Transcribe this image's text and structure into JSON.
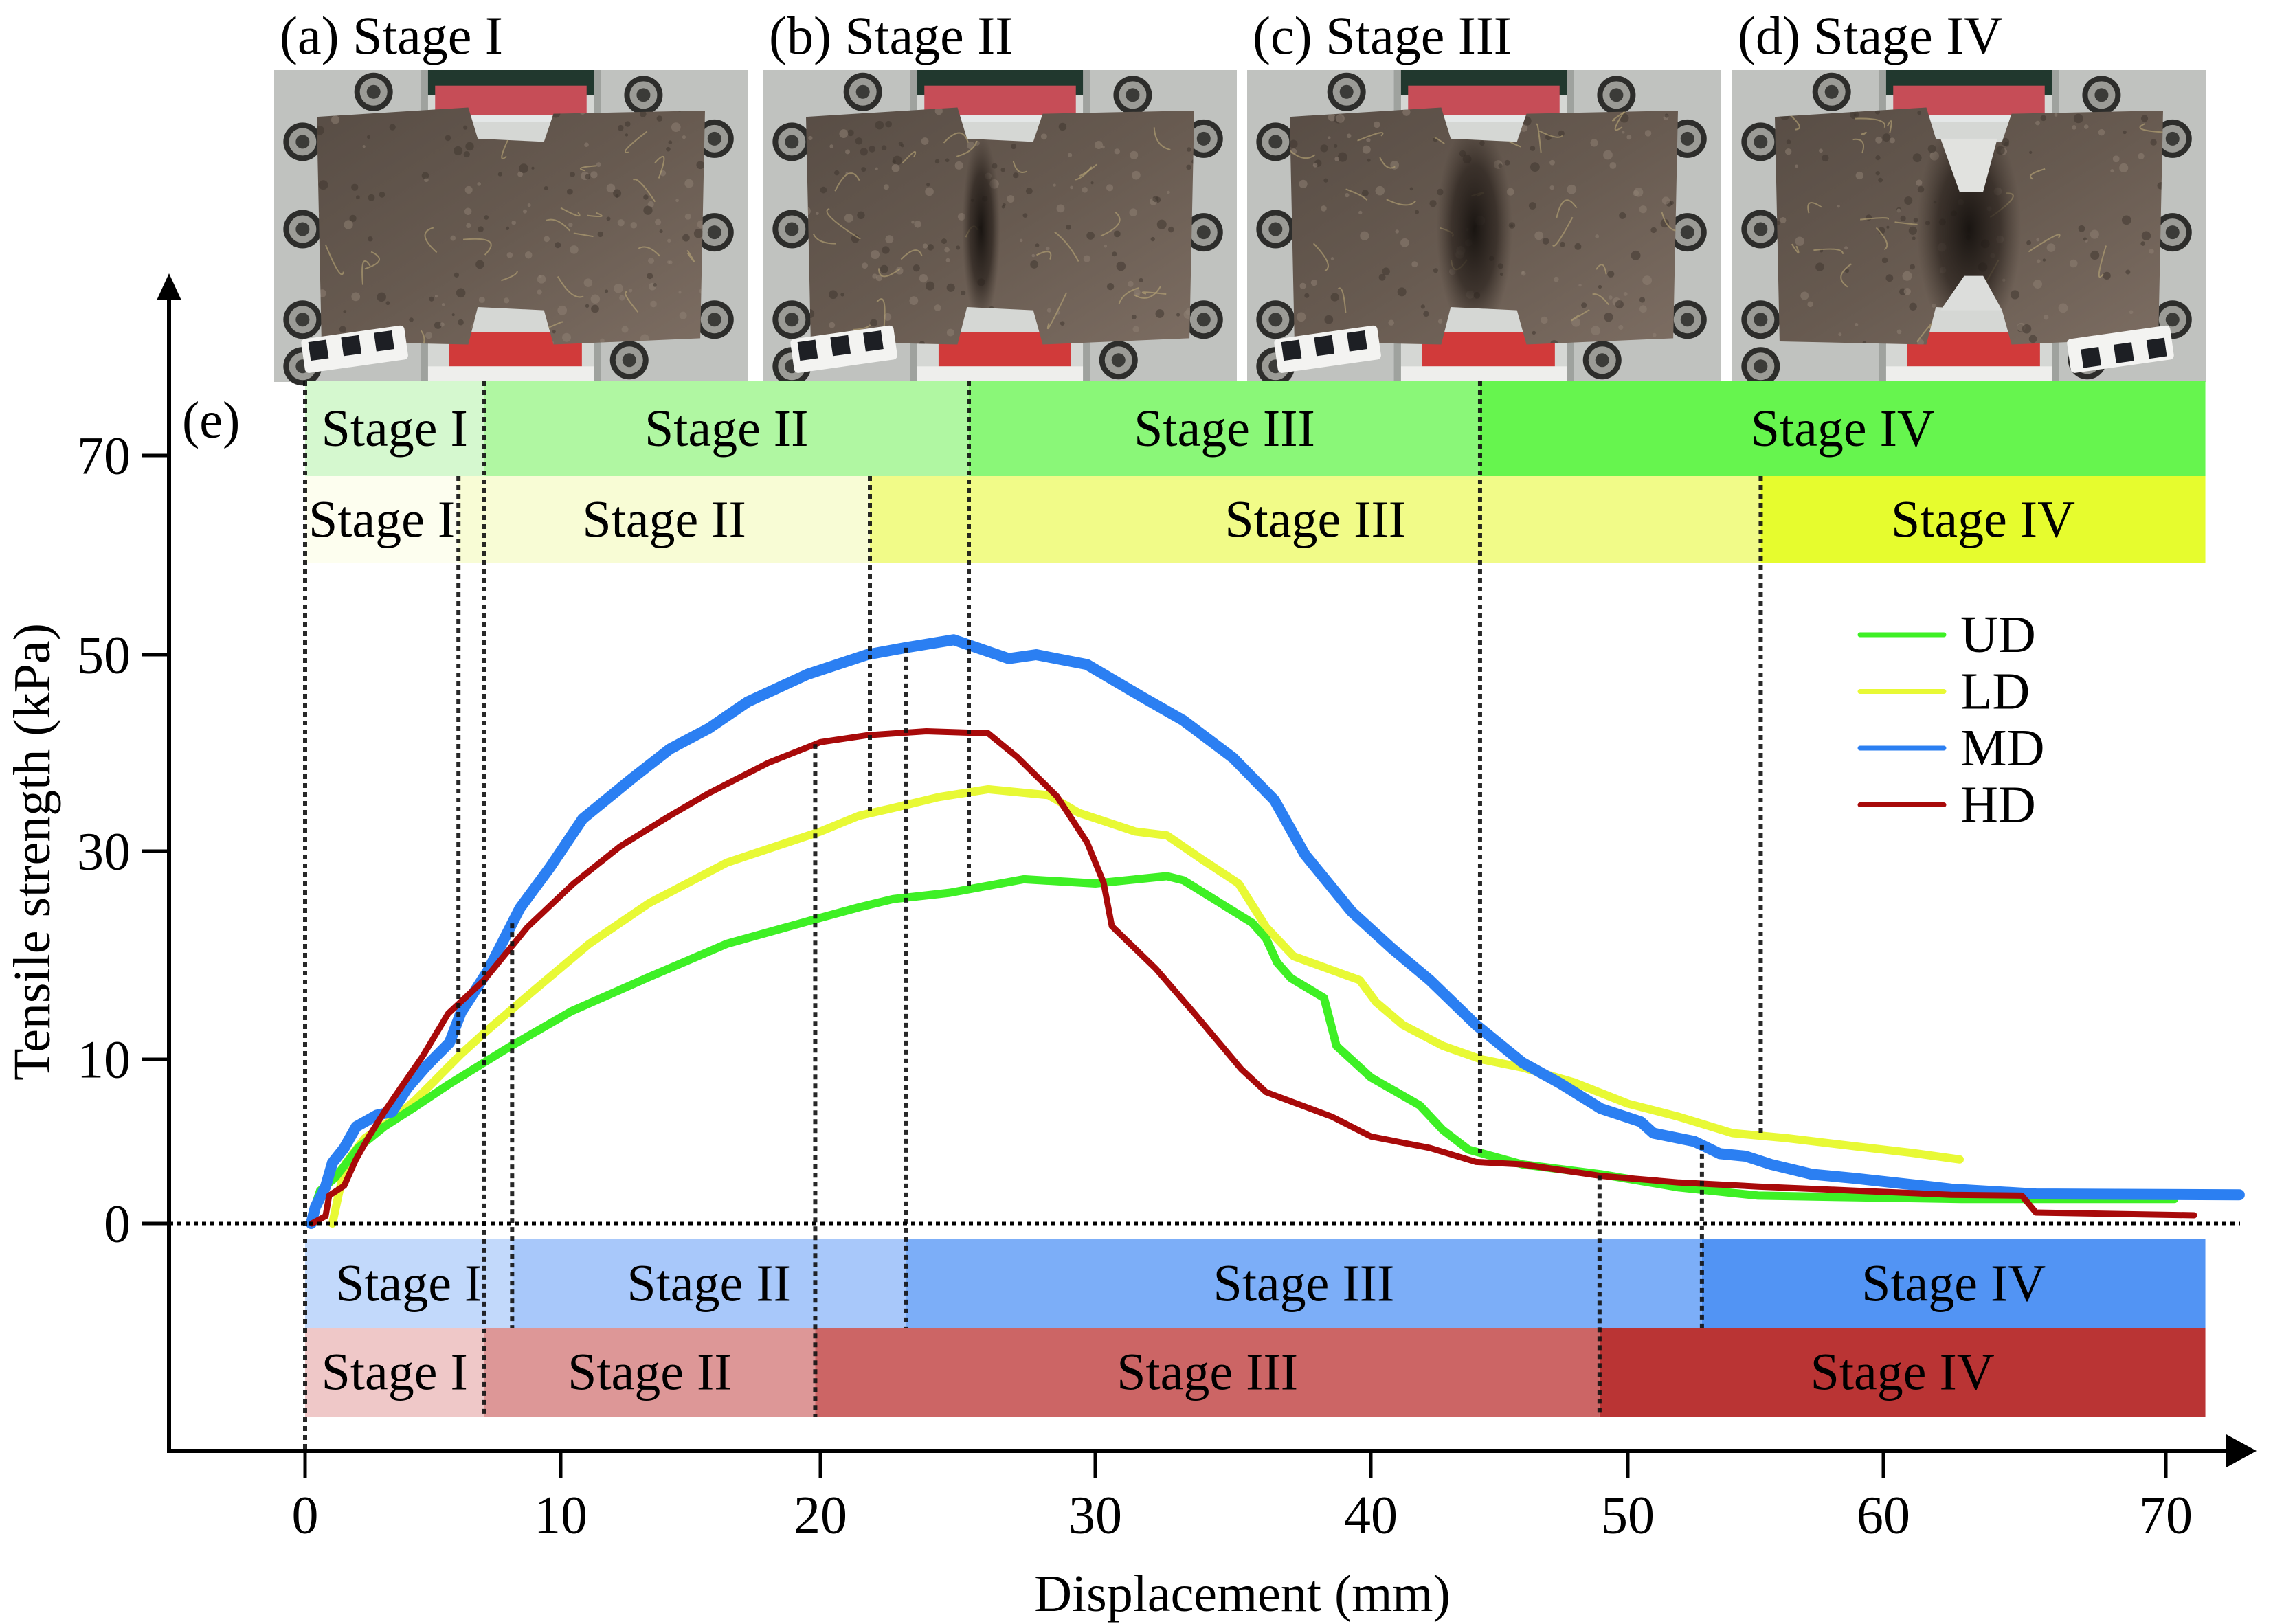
{
  "figure": {
    "panel_label": "(e)",
    "photos": [
      {
        "label": "(a) Stage I",
        "stage": "I"
      },
      {
        "label": "(b) Stage II",
        "stage": "II"
      },
      {
        "label": "(c) Stage III",
        "stage": "III"
      },
      {
        "label": "(d) Stage IV",
        "stage": "IV"
      }
    ]
  },
  "chart_data": {
    "type": "line",
    "title": "",
    "xlabel": "Displacement (mm)",
    "ylabel": "Tensile strength (kPa)",
    "x_ticks": [
      0,
      10,
      20,
      30,
      40,
      50,
      60,
      70
    ],
    "x_tick_labels": [
      "0",
      "10",
      "20",
      "30",
      "40",
      "50",
      "60",
      "70"
    ],
    "y_ticks": [
      70,
      50,
      30,
      10,
      0
    ],
    "y_tick_labels": [
      "70",
      "50",
      "30",
      "10",
      "0"
    ],
    "xlim": [
      -5.3,
      73.2
    ],
    "ylim": [
      -13.8,
      88
    ],
    "grid": false,
    "zero_reference_line": 0,
    "legend": {
      "position": "upper-right",
      "entries": [
        "UD",
        "LD",
        "MD",
        "HD"
      ]
    },
    "series": [
      {
        "name": "UD",
        "color": "#3ef025",
        "points": [
          [
            0.3,
            0
          ],
          [
            0.37,
            1.0
          ],
          [
            0.59,
            2.0
          ],
          [
            1.18,
            2.8
          ],
          [
            2.07,
            4.6
          ],
          [
            3.1,
            5.9
          ],
          [
            4.3,
            7.1
          ],
          [
            5.65,
            8.5
          ],
          [
            7.0,
            9.8
          ],
          [
            8.0,
            11.2
          ],
          [
            10.4,
            14.6
          ],
          [
            13.4,
            17.9
          ],
          [
            16.4,
            21.1
          ],
          [
            20.0,
            23.6
          ],
          [
            21.4,
            24.6
          ],
          [
            22.65,
            25.4
          ],
          [
            24.7,
            26.0
          ],
          [
            27.4,
            27.3
          ],
          [
            30.0,
            26.9
          ],
          [
            32.6,
            27.6
          ],
          [
            33.2,
            27.2
          ],
          [
            34.3,
            25.4
          ],
          [
            35.7,
            23.1
          ],
          [
            36.2,
            21.6
          ],
          [
            36.6,
            19.3
          ],
          [
            37.1,
            17.8
          ],
          [
            38.3,
            15.9
          ],
          [
            38.45,
            14.4
          ],
          [
            38.75,
            11.3
          ],
          [
            40.0,
            8.9
          ],
          [
            41.9,
            7.2
          ],
          [
            42.8,
            5.7
          ],
          [
            43.8,
            4.5
          ],
          [
            45.9,
            3.6
          ],
          [
            48.95,
            3.0
          ],
          [
            52.0,
            2.2
          ],
          [
            55.1,
            1.7
          ],
          [
            58.9,
            1.6
          ],
          [
            62.75,
            1.5
          ],
          [
            66.0,
            1.5
          ],
          [
            70.3,
            1.5
          ]
        ]
      },
      {
        "name": "LD",
        "color": "#e8f935",
        "points": [
          [
            1.07,
            0
          ],
          [
            1.3,
            1.7
          ],
          [
            1.6,
            3.7
          ],
          [
            2.34,
            5.2
          ],
          [
            3.3,
            6.2
          ],
          [
            4.3,
            7.5
          ],
          [
            5.2,
            8.9
          ],
          [
            6.1,
            10.5
          ],
          [
            7.0,
            12.5
          ],
          [
            8.85,
            16.4
          ],
          [
            11.1,
            21.1
          ],
          [
            13.4,
            25.0
          ],
          [
            16.4,
            28.9
          ],
          [
            20.0,
            32.0
          ],
          [
            21.4,
            33.6
          ],
          [
            22.65,
            34.4
          ],
          [
            24.3,
            35.5
          ],
          [
            26.1,
            36.3
          ],
          [
            28.3,
            35.7
          ],
          [
            29.4,
            33.9
          ],
          [
            31.45,
            32.0
          ],
          [
            32.6,
            31.6
          ],
          [
            33.85,
            29.25
          ],
          [
            35.2,
            26.9
          ],
          [
            36.2,
            22.7
          ],
          [
            37.2,
            19.9
          ],
          [
            39.6,
            17.6
          ],
          [
            40.2,
            15.5
          ],
          [
            41.25,
            13.3
          ],
          [
            42.8,
            11.3
          ],
          [
            44.3,
            10.0
          ],
          [
            45.9,
            9.5
          ],
          [
            47.9,
            8.6
          ],
          [
            50.0,
            7.3
          ],
          [
            52.0,
            6.5
          ],
          [
            54.1,
            5.5
          ],
          [
            56.2,
            5.2
          ],
          [
            58.9,
            4.7
          ],
          [
            61.0,
            4.3
          ],
          [
            62.7,
            3.9
          ]
        ]
      },
      {
        "name": "MD",
        "color": "#2b7ff2",
        "points": [
          [
            0.24,
            0
          ],
          [
            0.4,
            1.0
          ],
          [
            0.8,
            2.25
          ],
          [
            1.07,
            3.7
          ],
          [
            1.53,
            4.6
          ],
          [
            2.0,
            5.9
          ],
          [
            2.8,
            6.6
          ],
          [
            3.4,
            6.8
          ],
          [
            4.0,
            8.25
          ],
          [
            4.75,
            9.6
          ],
          [
            5.65,
            11.6
          ],
          [
            6.1,
            14.5
          ],
          [
            7.15,
            18.5
          ],
          [
            8.4,
            24.5
          ],
          [
            9.6,
            28.5
          ],
          [
            10.85,
            33.3
          ],
          [
            12.7,
            37.3
          ],
          [
            14.2,
            40.4
          ],
          [
            15.7,
            42.5
          ],
          [
            17.2,
            45.2
          ],
          [
            19.5,
            48.0
          ],
          [
            21.7,
            50.0
          ],
          [
            23.1,
            50.7
          ],
          [
            24.85,
            51.5
          ],
          [
            26.85,
            49.6
          ],
          [
            27.85,
            50.0
          ],
          [
            29.7,
            49.0
          ],
          [
            31.7,
            45.7
          ],
          [
            33.2,
            43.3
          ],
          [
            35.0,
            39.5
          ],
          [
            36.5,
            35.2
          ],
          [
            37.6,
            29.7
          ],
          [
            39.3,
            24.2
          ],
          [
            40.8,
            20.7
          ],
          [
            42.3,
            17.6
          ],
          [
            44.1,
            13.3
          ],
          [
            45.9,
            9.8
          ],
          [
            47.4,
            8.5
          ],
          [
            48.95,
            7.0
          ],
          [
            50.5,
            6.2
          ],
          [
            51.0,
            5.5
          ],
          [
            52.6,
            5.0
          ],
          [
            53.6,
            4.25
          ],
          [
            54.6,
            4.1
          ],
          [
            55.6,
            3.6
          ],
          [
            57.2,
            3.0
          ],
          [
            58.9,
            2.75
          ],
          [
            62.4,
            2.1
          ],
          [
            65.4,
            1.8
          ],
          [
            72.6,
            1.75
          ]
        ]
      },
      {
        "name": "HD",
        "color": "#a80a0a",
        "points": [
          [
            0.27,
            0
          ],
          [
            0.8,
            0.45
          ],
          [
            0.94,
            1.7
          ],
          [
            1.53,
            2.3
          ],
          [
            1.99,
            3.9
          ],
          [
            2.5,
            5.3
          ],
          [
            3.1,
            6.8
          ],
          [
            3.85,
            8.5
          ],
          [
            4.6,
            10.3
          ],
          [
            5.6,
            14.4
          ],
          [
            7.0,
            17.6
          ],
          [
            8.7,
            22.7
          ],
          [
            10.5,
            26.9
          ],
          [
            12.3,
            30.5
          ],
          [
            14.2,
            33.6
          ],
          [
            15.7,
            35.9
          ],
          [
            18.0,
            39.0
          ],
          [
            20.0,
            41.1
          ],
          [
            21.7,
            41.8
          ],
          [
            23.85,
            42.2
          ],
          [
            26.1,
            42.0
          ],
          [
            27.15,
            39.6
          ],
          [
            28.6,
            35.6
          ],
          [
            29.7,
            30.9
          ],
          [
            30.3,
            27.0
          ],
          [
            30.6,
            22.8
          ],
          [
            32.2,
            18.7
          ],
          [
            33.6,
            14.4
          ],
          [
            35.3,
            9.4
          ],
          [
            36.2,
            8.0
          ],
          [
            38.6,
            6.5
          ],
          [
            40.0,
            5.3
          ],
          [
            42.3,
            4.6
          ],
          [
            44.1,
            3.75
          ],
          [
            45.9,
            3.6
          ],
          [
            48.95,
            2.9
          ],
          [
            52.0,
            2.5
          ],
          [
            55.1,
            2.25
          ],
          [
            58.9,
            2.0
          ],
          [
            62.4,
            1.75
          ],
          [
            64.9,
            1.7
          ],
          [
            65.4,
            0.67
          ],
          [
            71.0,
            0.5
          ]
        ]
      }
    ],
    "stage_bands": [
      {
        "series": "UD",
        "segments": [
          {
            "label": "Stage I",
            "from": 0,
            "to": 7.0,
            "color": "#d5f8cf"
          },
          {
            "label": "Stage II",
            "from": 7.0,
            "to": 25.4,
            "color": "#b0f7a2"
          },
          {
            "label": "Stage III",
            "from": 25.4,
            "to": 44.25,
            "color": "#8af778"
          },
          {
            "label": "Stage IV",
            "from": 44.25,
            "to": 71.4,
            "color": "#66f54e"
          }
        ]
      },
      {
        "series": "LD",
        "segments": [
          {
            "label": "Stage I",
            "from": 0,
            "to": 6.0,
            "color": "#fdfeef"
          },
          {
            "label": "Stage II",
            "from": 6.0,
            "to": 21.8,
            "color": "#f8fcd5"
          },
          {
            "label": "Stage III",
            "from": 21.8,
            "to": 55.2,
            "color": "#f1fb88"
          },
          {
            "label": "Stage IV",
            "from": 55.2,
            "to": 71.4,
            "color": "#e6fc2e"
          }
        ]
      },
      {
        "series": "MD",
        "segments": [
          {
            "label": "Stage I",
            "from": 0,
            "to": 8.1,
            "color": "#c2d9fb"
          },
          {
            "label": "Stage II",
            "from": 8.1,
            "to": 23.1,
            "color": "#a8c8fa"
          },
          {
            "label": "Stage III",
            "from": 23.1,
            "to": 52.9,
            "color": "#7caef8"
          },
          {
            "label": "Stage IV",
            "from": 52.9,
            "to": 71.4,
            "color": "#5294f4"
          }
        ]
      },
      {
        "series": "HD",
        "segments": [
          {
            "label": "Stage I",
            "from": 0,
            "to": 7.0,
            "color": "#efc8c8"
          },
          {
            "label": "Stage II",
            "from": 7.0,
            "to": 19.8,
            "color": "#dd9797"
          },
          {
            "label": "Stage III",
            "from": 19.8,
            "to": 48.9,
            "color": "#cc6565"
          },
          {
            "label": "Stage IV",
            "from": 48.9,
            "to": 71.4,
            "color": "#ba3434"
          }
        ]
      }
    ]
  }
}
